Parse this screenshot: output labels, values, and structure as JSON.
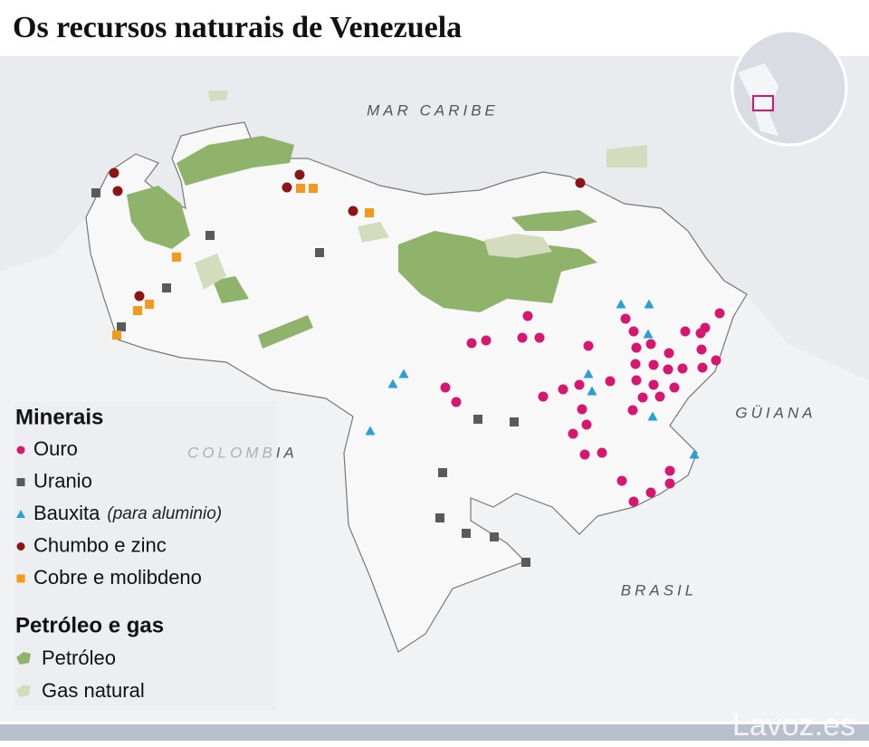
{
  "title": "Os recursos naturais de Venezuela",
  "map_labels": {
    "sea": "MAR CARIBE",
    "colombia": "COLOMBIA",
    "guiana": "GÜIANA",
    "brasil": "BRASIL"
  },
  "legend": {
    "minerals": {
      "heading": "Minerais",
      "items": [
        {
          "label": "Ouro",
          "color": "#d6176f",
          "shape": "circle"
        },
        {
          "label": "Uranio",
          "color": "#5a5a5a",
          "shape": "square"
        },
        {
          "label": "Bauxita",
          "note": "(para aluminio)",
          "color": "#2a9fd6",
          "shape": "triangle"
        },
        {
          "label": "Chumbo e zinc",
          "color": "#8b1414",
          "shape": "circle"
        },
        {
          "label": "Cobre e molibdeno",
          "color": "#f39a1e",
          "shape": "square"
        }
      ]
    },
    "energy": {
      "heading": "Petróleo e gas",
      "items": [
        {
          "label": "Petróleo",
          "color": "#8fb36a"
        },
        {
          "label": "Gas natural",
          "color": "#d3dcbd"
        }
      ]
    }
  },
  "watermark": "Lavoz.es"
}
